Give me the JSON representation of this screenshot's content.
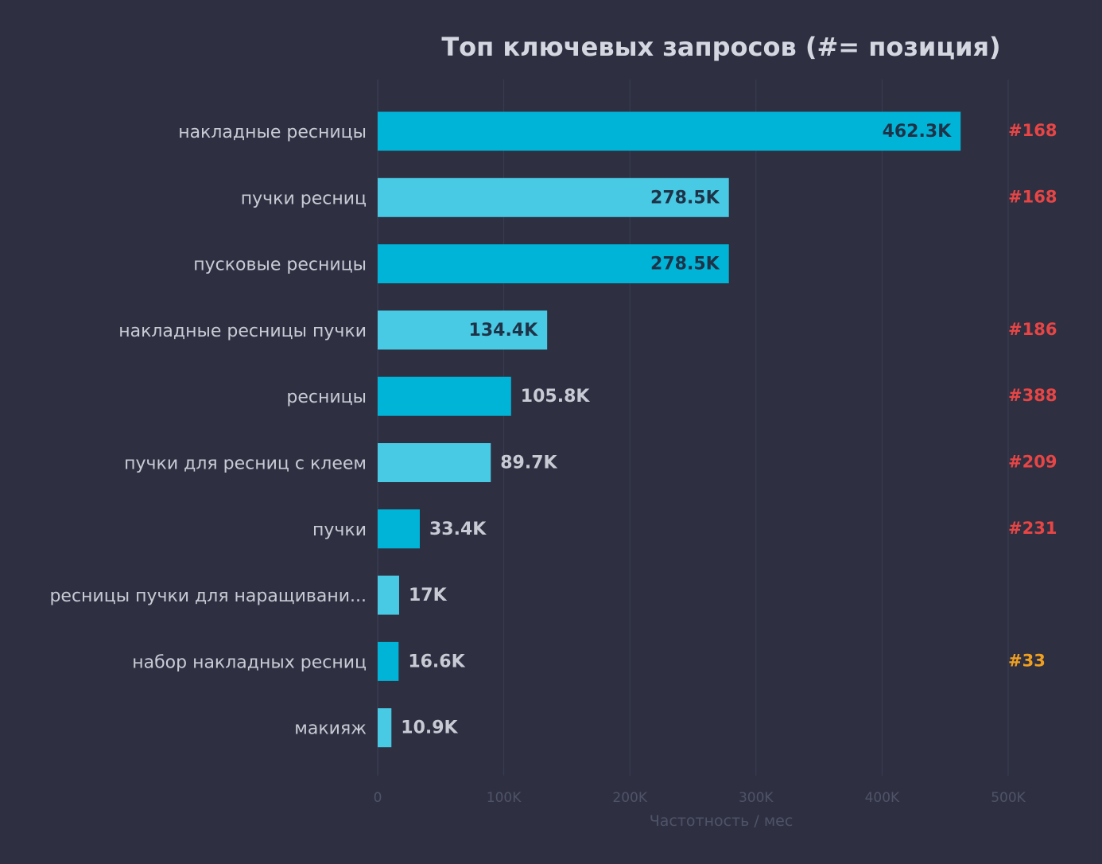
{
  "chart_data": {
    "type": "bar",
    "orientation": "horizontal",
    "title": "Топ ключевых запросов  (#= позиция)",
    "xlabel": "Частотность / мес",
    "ylabel": "",
    "xlim": [
      0,
      500000
    ],
    "grid": true,
    "x_ticks": [
      {
        "value": 0,
        "label": "0"
      },
      {
        "value": 100000,
        "label": "100K"
      },
      {
        "value": 200000,
        "label": "200K"
      },
      {
        "value": 300000,
        "label": "300K"
      },
      {
        "value": 400000,
        "label": "400K"
      },
      {
        "value": 500000,
        "label": "500K"
      }
    ],
    "categories": [
      "накладные ресницы",
      "пучки ресниц",
      "пусковые ресницы",
      "накладные ресницы пучки",
      "ресницы",
      "пучки для ресниц с клеем",
      "пучки",
      "ресницы пучки для наращивани...",
      "набор накладных ресниц",
      "макияж"
    ],
    "values": [
      462300,
      278500,
      278500,
      134400,
      105800,
      89700,
      33400,
      17000,
      16600,
      10900
    ],
    "value_labels": [
      "462.3K",
      "278.5K",
      "278.5K",
      "134.4K",
      "105.8K",
      "89.7K",
      "33.4K",
      "17K",
      "16.6K",
      "10.9K"
    ],
    "positions": [
      "#168",
      "#168",
      "",
      "#186",
      "#388",
      "#209",
      "#231",
      "",
      "#33",
      ""
    ],
    "bar_colors": [
      "#00b4d8",
      "#48cae4",
      "#00b4d8",
      "#48cae4",
      "#00b4d8",
      "#48cae4",
      "#00b4d8",
      "#48cae4",
      "#00b4d8",
      "#48cae4"
    ],
    "position_colors": [
      "#e84545",
      "#e84545",
      "",
      "#e84545",
      "#e84545",
      "#e84545",
      "#e84545",
      "",
      "#f0a020",
      ""
    ]
  },
  "colors": {
    "background": "#2e3042",
    "title": "#d4d6e0",
    "category_text": "#c8cad4",
    "value_text_inside": "#1f3348",
    "value_text_outside": "#c8cad4",
    "axis_text": "#4f5367",
    "grid": "#3a3d51"
  }
}
